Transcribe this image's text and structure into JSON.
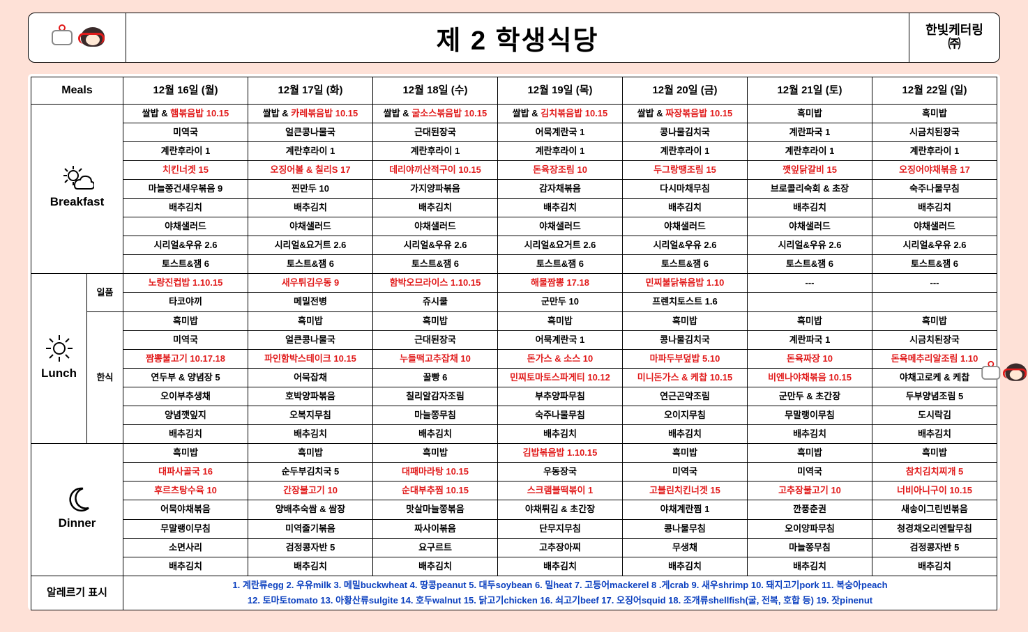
{
  "header": {
    "title": "제 2 학생식당",
    "brand_line1": "한빛케터링",
    "brand_line2": "㈜"
  },
  "table": {
    "meals_header": "Meals",
    "dates": [
      "12월 16일 (월)",
      "12월 17일 (화)",
      "12월 18일 (수)",
      "12월 19일 (목)",
      "12월 20일 (금)",
      "12월 21일 (토)",
      "12월 22일 (일)"
    ],
    "breakfast": {
      "label": "Breakfast",
      "rows": [
        [
          {
            "t": "쌀밥 & 햄볶음밥 10.15",
            "parts": [
              {
                "s": "쌀밥 & "
              },
              {
                "s": "햄볶음밥 10.15",
                "hl": true
              }
            ]
          },
          {
            "t": "쌀밥 & 카레볶음밥 10.15",
            "parts": [
              {
                "s": "쌀밥 & "
              },
              {
                "s": "카레볶음밥 10.15",
                "hl": true
              }
            ]
          },
          {
            "t": "쌀밥 & 굴소스볶음밥 10.15",
            "parts": [
              {
                "s": "쌀밥 & "
              },
              {
                "s": "굴소스볶음밥 10.15",
                "hl": true
              }
            ]
          },
          {
            "t": "쌀밥 & 김치볶음밥 10.15",
            "parts": [
              {
                "s": "쌀밥 & "
              },
              {
                "s": "김치볶음밥 10.15",
                "hl": true
              }
            ]
          },
          {
            "t": "쌀밥 & 짜장볶음밥 10.15",
            "parts": [
              {
                "s": "쌀밥 & "
              },
              {
                "s": "짜장볶음밥 10.15",
                "hl": true
              }
            ]
          },
          {
            "t": "흑미밥"
          },
          {
            "t": "흑미밥"
          }
        ],
        [
          {
            "t": "미역국"
          },
          {
            "t": "얼큰콩나물국"
          },
          {
            "t": "근대된장국"
          },
          {
            "t": "어묵계란국 1"
          },
          {
            "t": "콩나물김치국"
          },
          {
            "t": "계란파국 1"
          },
          {
            "t": "시금치된장국"
          }
        ],
        [
          {
            "t": "계란후라이 1"
          },
          {
            "t": "계란후라이 1"
          },
          {
            "t": "계란후라이 1"
          },
          {
            "t": "계란후라이 1"
          },
          {
            "t": "계란후라이 1"
          },
          {
            "t": "계란후라이 1"
          },
          {
            "t": "계란후라이 1"
          }
        ],
        [
          {
            "t": "치킨너겟 15",
            "hl": true
          },
          {
            "t": "오징어볼 & 칠리S 17",
            "hl": true
          },
          {
            "t": "데리야끼산적구이 10.15",
            "hl": true
          },
          {
            "t": "돈육장조림 10",
            "hl": true
          },
          {
            "t": "두그랑땡조림 15",
            "hl": true
          },
          {
            "t": "깻잎닭갈비 15",
            "hl": true
          },
          {
            "t": "오징어야채볶음 17",
            "hl": true
          }
        ],
        [
          {
            "t": "마늘쫑건새우볶음 9"
          },
          {
            "t": "찐만두 10"
          },
          {
            "t": "가지양파볶음"
          },
          {
            "t": "감자채볶음"
          },
          {
            "t": "다시마채무침"
          },
          {
            "t": "브로콜리숙회 & 초장"
          },
          {
            "t": "숙주나물무침"
          }
        ],
        [
          {
            "t": "배추김치"
          },
          {
            "t": "배추김치"
          },
          {
            "t": "배추김치"
          },
          {
            "t": "배추김치"
          },
          {
            "t": "배추김치"
          },
          {
            "t": "배추김치"
          },
          {
            "t": "배추김치"
          }
        ],
        [
          {
            "t": "야채샐러드"
          },
          {
            "t": "야채샐러드"
          },
          {
            "t": "야채샐러드"
          },
          {
            "t": "야채샐러드"
          },
          {
            "t": "야채샐러드"
          },
          {
            "t": "야채샐러드"
          },
          {
            "t": "야채샐러드"
          }
        ],
        [
          {
            "t": "시리얼&우유 2.6"
          },
          {
            "t": "시리얼&요거트 2.6"
          },
          {
            "t": "시리얼&우유 2.6"
          },
          {
            "t": "시리얼&요거트 2.6"
          },
          {
            "t": "시리얼&우유 2.6"
          },
          {
            "t": "시리얼&우유 2.6"
          },
          {
            "t": "시리얼&우유 2.6"
          }
        ],
        [
          {
            "t": "토스트&잼 6"
          },
          {
            "t": "토스트&잼 6"
          },
          {
            "t": "토스트&잼 6"
          },
          {
            "t": "토스트&잼 6"
          },
          {
            "t": "토스트&잼 6"
          },
          {
            "t": "토스트&잼 6"
          },
          {
            "t": "토스트&잼 6"
          }
        ]
      ]
    },
    "lunch": {
      "label": "Lunch",
      "ilpum_label": "일품",
      "hansik_label": "한식",
      "ilpum_rows": [
        [
          {
            "t": "노량진컵밥 1.10.15",
            "hl": true
          },
          {
            "t": "새우튀김우동 9",
            "hl": true
          },
          {
            "t": "함박오므라이스 1.10.15",
            "hl": true
          },
          {
            "t": "해물짬뽕 17.18",
            "hl": true
          },
          {
            "t": "민찌불닭볶음밥 1.10",
            "hl": true
          },
          {
            "t": "---"
          },
          {
            "t": "---"
          }
        ],
        [
          {
            "t": "타코야끼"
          },
          {
            "t": "메밀전병"
          },
          {
            "t": "쥬시쿨"
          },
          {
            "t": "군만두 10"
          },
          {
            "t": "프렌치토스트 1.6"
          },
          {
            "t": ""
          },
          {
            "t": ""
          }
        ]
      ],
      "hansik_rows": [
        [
          {
            "t": "흑미밥"
          },
          {
            "t": "흑미밥"
          },
          {
            "t": "흑미밥"
          },
          {
            "t": "흑미밥"
          },
          {
            "t": "흑미밥"
          },
          {
            "t": "흑미밥"
          },
          {
            "t": "흑미밥"
          }
        ],
        [
          {
            "t": "미역국"
          },
          {
            "t": "얼큰콩나물국"
          },
          {
            "t": "근대된장국"
          },
          {
            "t": "어묵계란국 1"
          },
          {
            "t": "콩나물김치국"
          },
          {
            "t": "계란파국 1"
          },
          {
            "t": "시금치된장국"
          }
        ],
        [
          {
            "t": "짬뽕불고기 10.17.18",
            "hl": true
          },
          {
            "t": "파인함박스테이크 10.15",
            "hl": true
          },
          {
            "t": "누들떡고추잡채 10",
            "hl": true
          },
          {
            "t": "돈가스 & 소스 10",
            "hl": true
          },
          {
            "t": "마파두부덮밥 5.10",
            "hl": true
          },
          {
            "t": "돈육짜장 10",
            "hl": true
          },
          {
            "t": "돈육메추리알조림 1.10",
            "hl": true
          }
        ],
        [
          {
            "t": "연두부 & 양념장 5"
          },
          {
            "t": "어묵잡채"
          },
          {
            "t": "꿀빵 6"
          },
          {
            "t": "민찌토마토스파게티 10.12",
            "hl": true
          },
          {
            "t": "미니돈가스 & 케찹 10.15",
            "hl": true
          },
          {
            "t": "비엔나야채볶음 10.15",
            "hl": true
          },
          {
            "t": "야채고로케 & 케찹"
          }
        ],
        [
          {
            "t": "오이부추생채"
          },
          {
            "t": "호박양파볶음"
          },
          {
            "t": "칠리알감자조림"
          },
          {
            "t": "부추양파무침"
          },
          {
            "t": "연근곤약조림"
          },
          {
            "t": "군만두 & 초간장"
          },
          {
            "t": "두부양념조림 5"
          }
        ],
        [
          {
            "t": "양념깻잎지"
          },
          {
            "t": "오복지무침"
          },
          {
            "t": "마늘쫑무침"
          },
          {
            "t": "숙주나물무침"
          },
          {
            "t": "오이지무침"
          },
          {
            "t": "무말랭이무침"
          },
          {
            "t": "도시락김"
          }
        ],
        [
          {
            "t": "배추김치"
          },
          {
            "t": "배추김치"
          },
          {
            "t": "배추김치"
          },
          {
            "t": "배추김치"
          },
          {
            "t": "배추김치"
          },
          {
            "t": "배추김치"
          },
          {
            "t": "배추김치"
          }
        ]
      ]
    },
    "dinner": {
      "label": "Dinner",
      "rows": [
        [
          {
            "t": "흑미밥"
          },
          {
            "t": "흑미밥"
          },
          {
            "t": "흑미밥"
          },
          {
            "t": "김밥볶음밥 1.10.15",
            "hl": true
          },
          {
            "t": "흑미밥"
          },
          {
            "t": "흑미밥"
          },
          {
            "t": "흑미밥"
          }
        ],
        [
          {
            "t": "대파사골국 16",
            "hl": true
          },
          {
            "t": "순두부김치국 5"
          },
          {
            "t": "대패마라탕 10.15",
            "hl": true
          },
          {
            "t": "우동장국"
          },
          {
            "t": "미역국"
          },
          {
            "t": "미역국"
          },
          {
            "t": "참치김치찌개 5",
            "hl": true
          }
        ],
        [
          {
            "t": "후르츠탕수육 10",
            "hl": true
          },
          {
            "t": "간장불고기 10",
            "hl": true
          },
          {
            "t": "순대부추찜 10.15",
            "hl": true
          },
          {
            "t": "스크램블떡볶이 1",
            "hl": true
          },
          {
            "t": "고블린치킨너겟 15",
            "hl": true
          },
          {
            "t": "고추장불고기 10",
            "hl": true
          },
          {
            "t": "너비아니구이 10.15",
            "hl": true
          }
        ],
        [
          {
            "t": "어묵야채볶음"
          },
          {
            "t": "양배추숙쌈 & 쌈장"
          },
          {
            "t": "맛살마늘쫑볶음"
          },
          {
            "t": "야채튀김 & 초간장"
          },
          {
            "t": "야채계란찜 1"
          },
          {
            "t": "깐풍춘권"
          },
          {
            "t": "새송이그린빈볶음"
          }
        ],
        [
          {
            "t": "무말랭이무침"
          },
          {
            "t": "미역줄기볶음"
          },
          {
            "t": "짜사이볶음"
          },
          {
            "t": "단무지무침"
          },
          {
            "t": "콩나물무침"
          },
          {
            "t": "오이양파무침"
          },
          {
            "t": "청경채오리엔탈무침"
          }
        ],
        [
          {
            "t": "소면사리"
          },
          {
            "t": "검정콩자반 5"
          },
          {
            "t": "요구르트"
          },
          {
            "t": "고추장아찌"
          },
          {
            "t": "무생채"
          },
          {
            "t": "마늘쫑무침"
          },
          {
            "t": "검정콩자반 5"
          }
        ],
        [
          {
            "t": "배추김치"
          },
          {
            "t": "배추김치"
          },
          {
            "t": "배추김치"
          },
          {
            "t": "배추김치"
          },
          {
            "t": "배추김치"
          },
          {
            "t": "배추김치"
          },
          {
            "t": "배추김치"
          }
        ]
      ]
    },
    "allergy": {
      "label": "알레르기 표시",
      "line1": "1. 계란류egg 2. 우유milk 3. 메밀buckwheat 4. 땅콩peanut 5. 대두soybean 6. 밀heat 7. 고등어mackerel 8 .게crab 9. 새우shrimp 10. 돼지고기pork 11. 복숭아peach",
      "line2": "12. 토마토tomato 13. 아황산류sulgite 14. 호두walnut 15. 닭고기chicken 16. 쇠고기beef 17. 오징어squid 18. 조개류shellfish(굴, 전복, 호합 등) 19. 잣pinenut"
    }
  },
  "colors": {
    "page_bg": "#fee1d7",
    "card_bg": "#ffffff",
    "border": "#000000",
    "highlight": "#e11b1b",
    "allergy_text": "#0a3fbf"
  }
}
